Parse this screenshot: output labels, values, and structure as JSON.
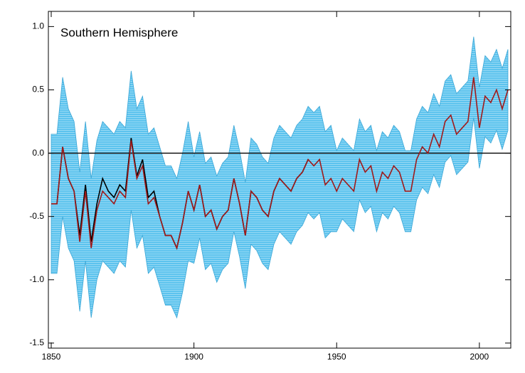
{
  "chart_data": {
    "type": "band-line",
    "title": "Southern Hemisphere",
    "x": [
      1850,
      1852,
      1854,
      1856,
      1858,
      1860,
      1862,
      1864,
      1866,
      1868,
      1870,
      1872,
      1874,
      1876,
      1878,
      1880,
      1882,
      1884,
      1886,
      1888,
      1890,
      1892,
      1894,
      1896,
      1898,
      1900,
      1902,
      1904,
      1906,
      1908,
      1910,
      1912,
      1914,
      1916,
      1918,
      1920,
      1922,
      1924,
      1926,
      1928,
      1930,
      1932,
      1934,
      1936,
      1938,
      1940,
      1942,
      1944,
      1946,
      1948,
      1950,
      1952,
      1954,
      1956,
      1958,
      1960,
      1962,
      1964,
      1966,
      1968,
      1970,
      1972,
      1974,
      1976,
      1978,
      1980,
      1982,
      1984,
      1986,
      1988,
      1990,
      1992,
      1994,
      1996,
      1998,
      2000,
      2002,
      2004,
      2006,
      2008,
      2010
    ],
    "band": {
      "color": "#5cc3ee",
      "edge_color": "#3aa6d6",
      "upper": [
        0.15,
        0.15,
        0.6,
        0.35,
        0.25,
        -0.15,
        0.25,
        -0.2,
        0.1,
        0.25,
        0.2,
        0.15,
        0.25,
        0.2,
        0.65,
        0.35,
        0.45,
        0.15,
        0.2,
        0.05,
        -0.1,
        -0.1,
        -0.2,
        0.0,
        0.25,
        -0.03,
        0.17,
        -0.08,
        -0.03,
        -0.18,
        -0.08,
        -0.03,
        0.22,
        0.02,
        -0.23,
        0.12,
        0.07,
        -0.03,
        -0.08,
        0.12,
        0.22,
        0.17,
        0.12,
        0.22,
        0.27,
        0.37,
        0.32,
        0.37,
        0.17,
        0.22,
        0.02,
        0.12,
        0.07,
        0.02,
        0.27,
        0.17,
        0.22,
        0.02,
        0.17,
        0.12,
        0.22,
        0.17,
        0.02,
        0.02,
        0.27,
        0.37,
        0.32,
        0.47,
        0.37,
        0.57,
        0.62,
        0.47,
        0.52,
        0.57,
        0.92,
        0.52,
        0.77,
        0.72,
        0.82,
        0.67,
        0.82
      ],
      "lower": [
        -0.95,
        -0.95,
        -0.5,
        -0.75,
        -0.85,
        -1.25,
        -0.85,
        -1.3,
        -1.0,
        -0.85,
        -0.9,
        -0.95,
        -0.85,
        -0.9,
        -0.45,
        -0.75,
        -0.65,
        -0.95,
        -0.9,
        -1.05,
        -1.2,
        -1.2,
        -1.3,
        -1.1,
        -0.85,
        -0.87,
        -0.67,
        -0.92,
        -0.87,
        -1.02,
        -0.92,
        -0.87,
        -0.62,
        -0.82,
        -1.07,
        -0.72,
        -0.77,
        -0.87,
        -0.92,
        -0.72,
        -0.62,
        -0.67,
        -0.72,
        -0.62,
        -0.57,
        -0.47,
        -0.52,
        -0.47,
        -0.67,
        -0.62,
        -0.62,
        -0.52,
        -0.57,
        -0.62,
        -0.37,
        -0.47,
        -0.42,
        -0.62,
        -0.47,
        -0.52,
        -0.42,
        -0.47,
        -0.62,
        -0.62,
        -0.37,
        -0.27,
        -0.32,
        -0.17,
        -0.27,
        -0.07,
        -0.02,
        -0.17,
        -0.12,
        -0.07,
        0.28,
        -0.12,
        0.13,
        0.08,
        0.18,
        0.03,
        0.18
      ]
    },
    "lines": [
      {
        "color": "#000000",
        "values": [
          -0.4,
          -0.4,
          0.05,
          -0.2,
          -0.3,
          -0.65,
          -0.25,
          -0.7,
          -0.4,
          -0.2,
          -0.3,
          -0.35,
          -0.25,
          -0.3,
          0.12,
          -0.18,
          -0.05,
          -0.35,
          -0.3,
          -0.5,
          -0.65,
          -0.65,
          -0.75,
          -0.55,
          -0.3,
          -0.45,
          -0.25,
          -0.5,
          -0.45,
          -0.6,
          -0.5,
          -0.45,
          -0.2,
          -0.4,
          -0.65,
          -0.3,
          -0.35,
          -0.45,
          -0.5,
          -0.3,
          -0.2,
          -0.25,
          -0.3,
          -0.2,
          -0.15,
          -0.05,
          null,
          null,
          null,
          null,
          null,
          null,
          null,
          null,
          null,
          null,
          null,
          null,
          null,
          null,
          null,
          null,
          null,
          null,
          null,
          null,
          null,
          null,
          null,
          null,
          null,
          null,
          null,
          null,
          null,
          null,
          null,
          null,
          null,
          null,
          null
        ]
      },
      {
        "color": "#a01a1a",
        "values": [
          -0.4,
          -0.4,
          0.05,
          -0.2,
          -0.3,
          -0.7,
          -0.3,
          -0.75,
          -0.45,
          -0.3,
          -0.35,
          -0.4,
          -0.3,
          -0.35,
          0.1,
          -0.2,
          -0.1,
          -0.4,
          -0.35,
          -0.5,
          -0.65,
          -0.65,
          -0.75,
          -0.55,
          -0.3,
          -0.45,
          -0.25,
          -0.5,
          -0.45,
          -0.6,
          -0.5,
          -0.45,
          -0.2,
          -0.4,
          -0.65,
          -0.3,
          -0.35,
          -0.45,
          -0.5,
          -0.3,
          -0.2,
          -0.25,
          -0.3,
          -0.2,
          -0.15,
          -0.05,
          -0.1,
          -0.05,
          -0.25,
          -0.2,
          -0.3,
          -0.2,
          -0.25,
          -0.3,
          -0.05,
          -0.15,
          -0.1,
          -0.3,
          -0.15,
          -0.2,
          -0.1,
          -0.15,
          -0.3,
          -0.3,
          -0.05,
          0.05,
          0.0,
          0.15,
          0.05,
          0.25,
          0.3,
          0.15,
          0.2,
          0.25,
          0.6,
          0.2,
          0.45,
          0.4,
          0.5,
          0.35,
          0.5
        ]
      }
    ],
    "hline": 0,
    "xlim": [
      1849,
      2011
    ],
    "ylim": [
      -1.54,
      1.12
    ],
    "xticks": [
      1850,
      1900,
      1950,
      2000
    ],
    "yticks": [
      {
        "value": -1.5,
        "label": "-1.5"
      },
      {
        "value": -1.0,
        "label": "-1.0"
      },
      {
        "value": -0.5,
        "label": "-0.5"
      },
      {
        "value": 0.0,
        "label": "0.0"
      },
      {
        "value": 0.5,
        "label": "0.5"
      },
      {
        "value": 1.0,
        "label": "1.0"
      }
    ]
  }
}
